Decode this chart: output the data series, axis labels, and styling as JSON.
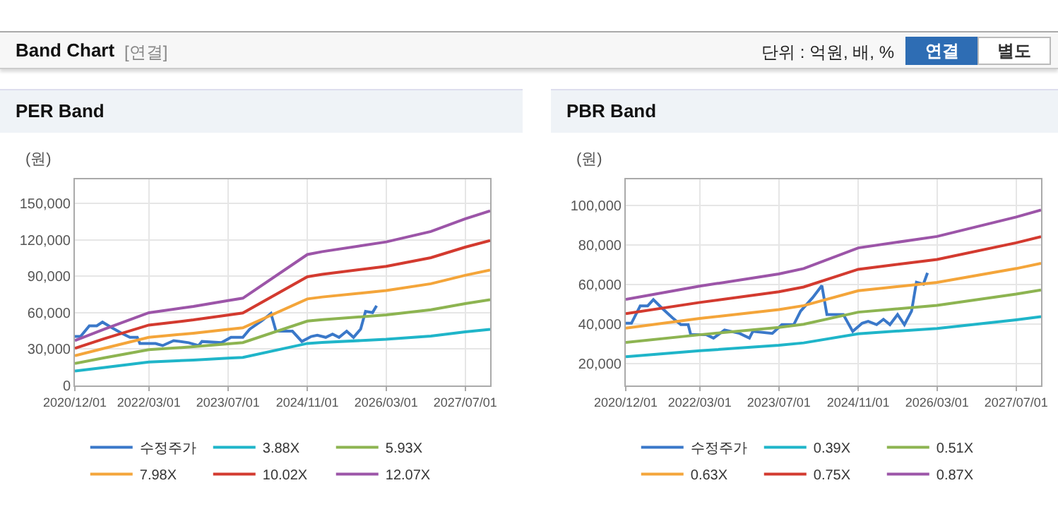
{
  "chart_data": [
    {
      "type": "other",
      "title": "Band Chart",
      "annotations": [
        "[연결]",
        "단위 : 억원, 배, %",
        "연결",
        "별도"
      ]
    },
    {
      "type": "line",
      "title": "PER Band",
      "ylabel": "(원)",
      "xlim": [
        "2020-12-01",
        "2027-12-01"
      ],
      "ylim": [
        0,
        170000
      ],
      "xticks": [
        {
          "value": "2020-12-01",
          "label": "2020/12/01"
        },
        {
          "value": "2022-03-01",
          "label": "2022/03/01"
        },
        {
          "value": "2023-07-01",
          "label": "2023/07/01"
        },
        {
          "value": "2024-11-01",
          "label": "2024/11/01"
        },
        {
          "value": "2026-03-01",
          "label": "2026/03/01"
        },
        {
          "value": "2027-07-01",
          "label": "2027/07/01"
        }
      ],
      "yticks": [
        0,
        {
          "value": 30000,
          "label": "30,000"
        },
        {
          "value": 60000,
          "label": "60,000"
        },
        {
          "value": 90000,
          "label": "90,000"
        },
        {
          "value": 120000,
          "label": "120,000"
        },
        {
          "value": 150000,
          "label": "150,000"
        }
      ],
      "grid": true,
      "legend": "bottom",
      "x": [
        "2020-12-01",
        "2021-06-01",
        "2022-03-01",
        "2022-12-01",
        "2023-07-01",
        "2023-10-01",
        "2024-11-01",
        "2025-02-01",
        "2026-03-01",
        "2026-12-01",
        "2027-07-01",
        "2027-12-01"
      ],
      "series": [
        {
          "name": "수정주가",
          "color": "#3a78c9",
          "x": [
            "2020-12-01",
            "2021-01-05",
            "2021-02-28",
            "2021-04-15",
            "2021-05-20",
            "2021-07-10",
            "2021-09-15",
            "2021-11-05",
            "2021-12-20",
            "2022-01-05",
            "2022-04-12",
            "2022-05-25",
            "2022-08-01",
            "2022-11-01",
            "2023-01-01",
            "2023-01-22",
            "2023-05-22",
            "2023-07-20",
            "2023-10-01",
            "2023-11-12",
            "2024-01-25",
            "2024-03-22",
            "2024-04-22",
            "2024-08-01",
            "2024-09-28",
            "2024-11-25",
            "2025-01-01",
            "2025-02-22",
            "2025-04-05",
            "2025-05-15",
            "2025-07-01",
            "2025-08-12",
            "2025-09-25",
            "2025-10-25",
            "2025-12-07",
            "2026-01-01"
          ],
          "values": [
            40400,
            40400,
            49200,
            49200,
            52300,
            48200,
            43100,
            39700,
            39700,
            34600,
            34600,
            32900,
            37000,
            35300,
            32900,
            36300,
            35300,
            39700,
            39700,
            46500,
            53300,
            59400,
            44800,
            44800,
            36300,
            40400,
            41400,
            39700,
            42400,
            39700,
            44800,
            39700,
            46500,
            61100,
            60100,
            65800
          ]
        },
        {
          "name": "3.88X",
          "color": "#1fb5c9",
          "values": [
            11900,
            14900,
            19300,
            21000,
            22500,
            23100,
            34700,
            35500,
            38100,
            40800,
            44200,
            46300
          ]
        },
        {
          "name": "5.93X",
          "color": "#8db451",
          "values": [
            18200,
            22800,
            29500,
            32000,
            34400,
            35400,
            53100,
            54300,
            58200,
            62400,
            67500,
            70700
          ]
        },
        {
          "name": "7.98X",
          "color": "#f4a53a",
          "values": [
            24500,
            30700,
            39700,
            43100,
            46300,
            47600,
            71400,
            73000,
            78300,
            83900,
            90900,
            95200
          ]
        },
        {
          "name": "10.02X",
          "color": "#d33a2f",
          "values": [
            30700,
            38600,
            49800,
            54100,
            58100,
            59800,
            89700,
            91700,
            98300,
            105400,
            114100,
            119500
          ]
        },
        {
          "name": "12.07X",
          "color": "#9c55a8",
          "values": [
            37000,
            46500,
            60000,
            65200,
            70000,
            72000,
            108000,
            110400,
            118400,
            127000,
            137500,
            144000
          ]
        }
      ]
    },
    {
      "type": "line",
      "title": "PBR Band",
      "ylabel": "(원)",
      "xlim": [
        "2020-12-01",
        "2027-12-01"
      ],
      "ylim": [
        9000,
        113000
      ],
      "xticks": [
        {
          "value": "2020-12-01",
          "label": "2020/12/01"
        },
        {
          "value": "2022-03-01",
          "label": "2022/03/01"
        },
        {
          "value": "2023-07-01",
          "label": "2023/07/01"
        },
        {
          "value": "2024-11-01",
          "label": "2024/11/01"
        },
        {
          "value": "2026-03-01",
          "label": "2026/03/01"
        },
        {
          "value": "2027-07-01",
          "label": "2027/07/01"
        }
      ],
      "yticks": [
        {
          "value": 20000,
          "label": "20,000"
        },
        {
          "value": 40000,
          "label": "40,000"
        },
        {
          "value": 60000,
          "label": "60,000"
        },
        {
          "value": 80000,
          "label": "80,000"
        },
        {
          "value": 100000,
          "label": "100,000"
        }
      ],
      "grid": true,
      "legend": "bottom",
      "x": [
        "2020-12-01",
        "2022-03-01",
        "2023-07-01",
        "2023-12-01",
        "2024-11-01",
        "2026-03-01",
        "2027-07-01",
        "2027-12-01"
      ],
      "series": [
        {
          "name": "수정주가",
          "color": "#3a78c9",
          "x": [
            "2020-12-01",
            "2021-01-05",
            "2021-02-28",
            "2021-04-15",
            "2021-05-20",
            "2021-07-10",
            "2021-09-15",
            "2021-11-05",
            "2021-12-20",
            "2022-01-05",
            "2022-04-12",
            "2022-05-25",
            "2022-08-01",
            "2022-11-01",
            "2023-01-01",
            "2023-01-22",
            "2023-05-22",
            "2023-07-20",
            "2023-10-01",
            "2023-11-12",
            "2024-01-25",
            "2024-03-22",
            "2024-04-22",
            "2024-08-01",
            "2024-09-28",
            "2024-11-25",
            "2025-01-01",
            "2025-02-22",
            "2025-04-05",
            "2025-05-15",
            "2025-07-01",
            "2025-08-12",
            "2025-09-25",
            "2025-10-25",
            "2025-12-07",
            "2026-01-01"
          ],
          "values": [
            40400,
            40400,
            49200,
            49200,
            52300,
            48200,
            43100,
            39700,
            39700,
            34600,
            34600,
            32900,
            37000,
            35300,
            32900,
            36300,
            35300,
            39700,
            39700,
            46500,
            53300,
            59400,
            44800,
            44800,
            36300,
            40400,
            41400,
            39700,
            42400,
            39700,
            44800,
            39700,
            46500,
            61100,
            60100,
            65800
          ]
        },
        {
          "name": "0.39X",
          "color": "#1fb5c9",
          "values": [
            23500,
            26500,
            29300,
            30500,
            35100,
            37800,
            42100,
            43700
          ]
        },
        {
          "name": "0.51X",
          "color": "#8db451",
          "values": [
            30700,
            34600,
            38300,
            39900,
            46000,
            49400,
            55100,
            57200
          ]
        },
        {
          "name": "0.63X",
          "color": "#f4a53a",
          "values": [
            37900,
            42800,
            47300,
            49300,
            56800,
            61000,
            68000,
            70600
          ]
        },
        {
          "name": "0.75X",
          "color": "#d33a2f",
          "values": [
            45200,
            50900,
            56300,
            58700,
            67600,
            72600,
            81000,
            84100
          ]
        },
        {
          "name": "0.87X",
          "color": "#9c55a8",
          "values": [
            52400,
            59100,
            65300,
            68000,
            78400,
            84200,
            94000,
            97500
          ]
        }
      ]
    }
  ]
}
